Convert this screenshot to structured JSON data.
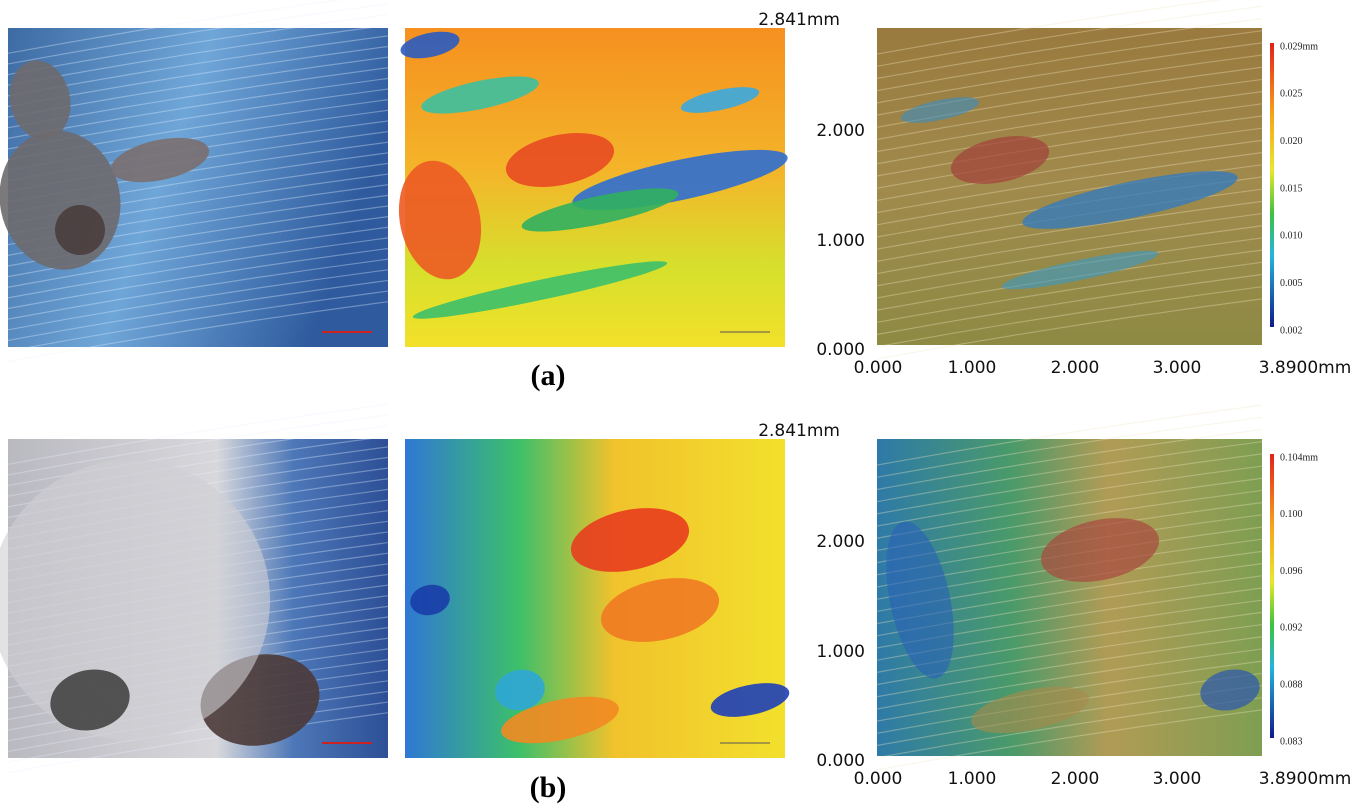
{
  "panels": [
    {
      "label": "(a)",
      "y_ticks": [
        "2.841mm",
        "2.000",
        "1.000",
        "0.000"
      ],
      "x_ticks": [
        "0.000",
        "1.000",
        "2.000",
        "3.000",
        "3.8900mm"
      ],
      "colorbar_ticks": [
        "0.029mm",
        "0.025",
        "0.020",
        "0.015",
        "0.010",
        "0.005",
        "0.002"
      ]
    },
    {
      "label": "(b)",
      "y_ticks": [
        "2.841mm",
        "2.000",
        "1.000",
        "0.000"
      ],
      "x_ticks": [
        "0.000",
        "1.000",
        "2.000",
        "3.000",
        "3.8900mm"
      ],
      "colorbar_ticks": [
        "0.104mm",
        "0.100",
        "0.096",
        "0.092",
        "0.088",
        "0.083"
      ]
    }
  ]
}
